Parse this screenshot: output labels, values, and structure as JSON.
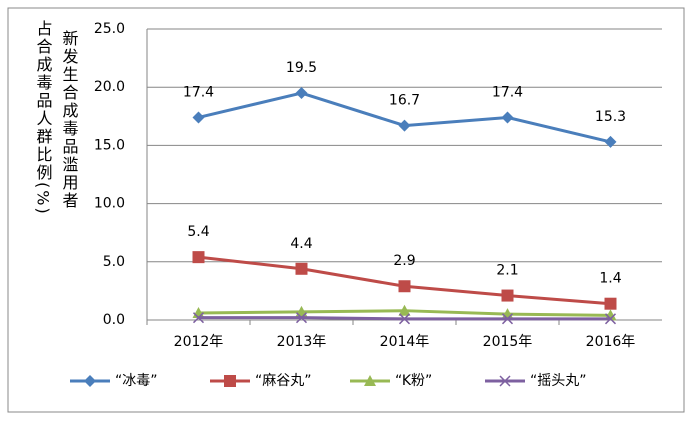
{
  "chart_data": {
    "type": "line",
    "y_label_lines": [
      "新发生合成毒品滥用者",
      "占合成毒品人群比例(%)"
    ],
    "categories": [
      "2012年",
      "2013年",
      "2014年",
      "2015年",
      "2016年"
    ],
    "series": [
      {
        "name": "“冰毒”",
        "color": "#4a7ebb",
        "marker": "diamond",
        "values": [
          17.4,
          19.5,
          16.7,
          17.4,
          15.3
        ],
        "show_labels": true
      },
      {
        "name": "“麻谷丸”",
        "color": "#be4b48",
        "marker": "square",
        "values": [
          5.4,
          4.4,
          2.9,
          2.1,
          1.4
        ],
        "show_labels": true
      },
      {
        "name": "“K粉”",
        "color": "#98b954",
        "marker": "triangle",
        "values": [
          0.6,
          0.7,
          0.8,
          0.5,
          0.4
        ],
        "show_labels": false
      },
      {
        "name": "“摇头丸”",
        "color": "#7d60a0",
        "marker": "x",
        "values": [
          0.2,
          0.2,
          0.1,
          0.1,
          0.1
        ],
        "show_labels": false
      }
    ],
    "ylim": [
      0,
      25
    ],
    "yticks": [
      {
        "value": 0,
        "label": "0.0"
      },
      {
        "value": 5,
        "label": "5.0"
      },
      {
        "value": 10,
        "label": "10.0"
      },
      {
        "value": 15,
        "label": "15.0"
      },
      {
        "value": 20,
        "label": "20.0"
      },
      {
        "value": 25,
        "label": "25.0"
      }
    ],
    "grid": true,
    "legend": "bottom"
  }
}
